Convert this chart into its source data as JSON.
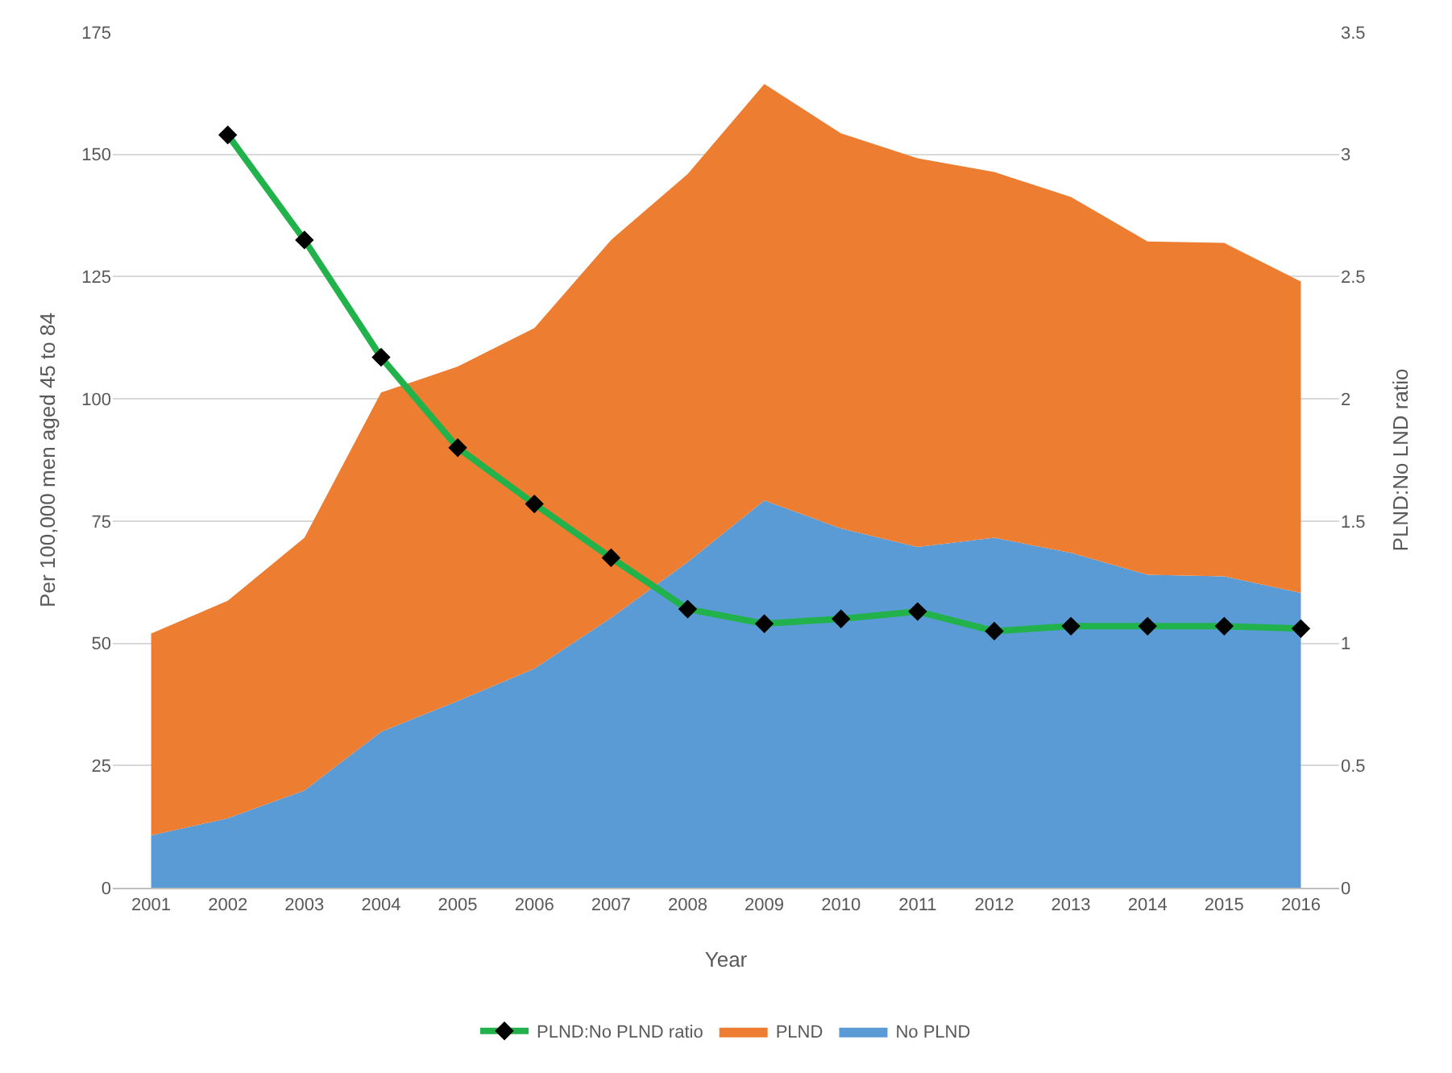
{
  "chart_data": {
    "type": "area",
    "stacked": true,
    "xlabel": "Year",
    "ylabel": "Per 100,000 men aged 45 to 84",
    "y2label": "PLND:No LND ratio",
    "categories": [
      "2001",
      "2002",
      "2003",
      "2004",
      "2005",
      "2006",
      "2007",
      "2008",
      "2009",
      "2010",
      "2011",
      "2012",
      "2013",
      "2014",
      "2015",
      "2016"
    ],
    "series": [
      {
        "name": "No PLND",
        "color": "#5b9bd5",
        "values": [
          10.7,
          14.2,
          19.9,
          31.9,
          38.2,
          44.8,
          55.2,
          66.6,
          79.2,
          73.5,
          69.7,
          71.6,
          68.5,
          64,
          63.7,
          60.3
        ]
      },
      {
        "name": "PLND",
        "color": "#ed7d31",
        "values": [
          41.3,
          44.5,
          51.7,
          69.4,
          68.4,
          69.7,
          77.3,
          79.4,
          85.2,
          80.8,
          79.5,
          74.8,
          72.8,
          68.2,
          68.2,
          63.7
        ]
      },
      {
        "name": "PLND:No PLND ratio",
        "type": "line",
        "axis": "y2",
        "color": "#22b24c",
        "marker": "diamond",
        "values": [
          null,
          3.08,
          2.65,
          2.17,
          1.8,
          1.57,
          1.35,
          1.14,
          1.08,
          1.1,
          1.13,
          1.05,
          1.07,
          1.07,
          1.07,
          1.06
        ]
      }
    ],
    "ylim": [
      0,
      175
    ],
    "yticks": [
      0,
      25,
      50,
      75,
      100,
      125,
      150,
      175
    ],
    "y2lim": [
      0,
      3.5
    ],
    "y2ticks": [
      0,
      {
        "value": 0.5,
        "label": "0.5"
      },
      1,
      {
        "value": 1.5,
        "label": "1.5"
      },
      2,
      {
        "value": 2.5,
        "label": "2.5"
      },
      3,
      {
        "value": 3.5,
        "label": "3.5"
      }
    ],
    "grid": "y",
    "legend": "bottom"
  }
}
